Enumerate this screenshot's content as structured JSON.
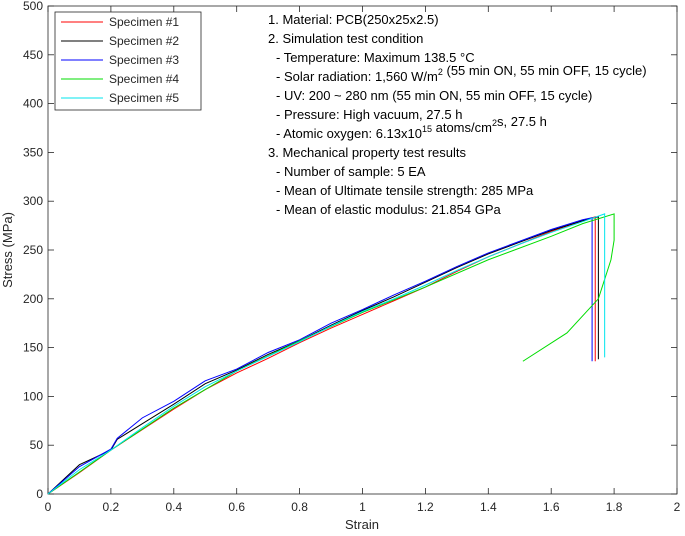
{
  "chart_data": {
    "type": "line",
    "xlabel": "Strain",
    "ylabel": "Stress (MPa)",
    "xlim": [
      0,
      2
    ],
    "xticks": [
      0,
      0.2,
      0.4,
      0.6,
      0.8,
      1,
      1.2,
      1.4,
      1.6,
      1.8,
      2
    ],
    "ylim": [
      0,
      500
    ],
    "yticks": [
      0,
      50,
      100,
      150,
      200,
      250,
      300,
      350,
      400,
      450,
      500
    ],
    "grid": false,
    "legend": "upper left",
    "series": [
      {
        "name": "Specimen #1",
        "color": "#ff0000",
        "x": [
          0,
          0.1,
          0.2,
          0.3,
          0.4,
          0.5,
          0.6,
          0.7,
          0.8,
          0.9,
          1.0,
          1.1,
          1.2,
          1.3,
          1.4,
          1.5,
          1.6,
          1.7,
          1.74,
          1.74
        ],
        "values": [
          0,
          22,
          45,
          66,
          87,
          107,
          124,
          139,
          155,
          170,
          184,
          198,
          212,
          228,
          243,
          256,
          269,
          280,
          284,
          136
        ]
      },
      {
        "name": "Specimen #2",
        "color": "#000000",
        "x": [
          0,
          0.1,
          0.2,
          0.22,
          0.3,
          0.4,
          0.5,
          0.6,
          0.7,
          0.8,
          0.9,
          1.0,
          1.1,
          1.2,
          1.3,
          1.4,
          1.5,
          1.6,
          1.7,
          1.75,
          1.75
        ],
        "values": [
          0,
          30,
          45,
          56,
          72,
          92,
          113,
          127,
          143,
          157,
          173,
          188,
          202,
          217,
          232,
          246,
          258,
          270,
          280,
          284,
          138
        ]
      },
      {
        "name": "Specimen #3",
        "color": "#0000ff",
        "x": [
          0,
          0.1,
          0.2,
          0.22,
          0.3,
          0.4,
          0.5,
          0.6,
          0.7,
          0.8,
          0.9,
          1.0,
          1.1,
          1.2,
          1.3,
          1.4,
          1.5,
          1.6,
          1.7,
          1.73,
          1.73
        ],
        "values": [
          0,
          28,
          46,
          57,
          78,
          95,
          116,
          128,
          145,
          158,
          175,
          189,
          204,
          218,
          233,
          247,
          259,
          271,
          281,
          283,
          136
        ]
      },
      {
        "name": "Specimen #4",
        "color": "#00dd00",
        "x": [
          0,
          0.2,
          0.4,
          0.6,
          0.8,
          1.0,
          1.2,
          1.4,
          1.6,
          1.7,
          1.8,
          1.8,
          1.79,
          1.75,
          1.65,
          1.51
        ],
        "values": [
          0,
          45,
          88,
          126,
          157,
          186,
          212,
          240,
          264,
          277,
          287,
          260,
          240,
          200,
          165,
          136
        ]
      },
      {
        "name": "Specimen #5",
        "color": "#00e5ee",
        "x": [
          0,
          0.1,
          0.2,
          0.3,
          0.4,
          0.5,
          0.6,
          0.7,
          0.8,
          0.9,
          1.0,
          1.1,
          1.2,
          1.3,
          1.4,
          1.5,
          1.6,
          1.7,
          1.77,
          1.77
        ],
        "values": [
          0,
          25,
          45,
          68,
          90,
          110,
          126,
          141,
          156,
          172,
          187,
          200,
          214,
          229,
          243,
          256,
          268,
          279,
          287,
          140
        ]
      }
    ],
    "annotations": [
      [
        {
          "text": "1. Material: PCB(250x25x2.5)"
        }
      ],
      [
        {
          "text": "2. Simulation test condition"
        }
      ],
      [
        {
          "text": "- Temperature: Maximum 138.5 °C"
        }
      ],
      [
        {
          "text": "- Solar radiation: 1,560 W/m"
        },
        {
          "sup": "2"
        },
        {
          "text": " (55 min ON, 55 min OFF, 15 cycle)"
        }
      ],
      [
        {
          "text": "- UV: 200 ~ 280 nm (55 min ON, 55 min OFF, 15 cycle)"
        }
      ],
      [
        {
          "text": "- Pressure: High vacuum, 27.5 h"
        }
      ],
      [
        {
          "text": "- Atomic oxygen: 6.13x10"
        },
        {
          "sup": "15"
        },
        {
          "text": " atoms/cm"
        },
        {
          "sup": "2"
        },
        {
          "text": "s, 27.5 h"
        }
      ],
      [
        {
          "text": "3. Mechanical property test results"
        }
      ],
      [
        {
          "text": "- Number of sample: 5 EA"
        }
      ],
      [
        {
          "text": "- Mean of Ultimate tensile strength: 285 MPa"
        }
      ],
      [
        {
          "text": "- Mean of elastic modulus: 21.854 GPa"
        }
      ]
    ]
  }
}
